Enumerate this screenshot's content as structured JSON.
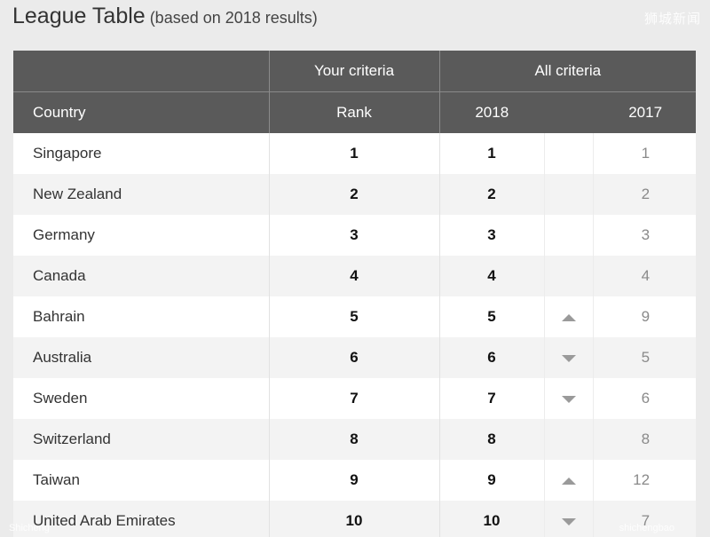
{
  "title": {
    "main": "League Table",
    "sub": " (based on 2018 results)"
  },
  "watermarks": {
    "top_right": "狮城新闻",
    "bottom_left": "Shicheng",
    "bottom_right": "shichengbao"
  },
  "table": {
    "group_headers": {
      "your_criteria": "Your criteria",
      "all_criteria": "All criteria"
    },
    "columns": {
      "country": "Country",
      "rank": "Rank",
      "y2018": "2018",
      "y2017": "2017"
    },
    "rows": [
      {
        "country": "Singapore",
        "rank": "1",
        "y2018": "1",
        "trend": "none",
        "y2017": "1"
      },
      {
        "country": "New Zealand",
        "rank": "2",
        "y2018": "2",
        "trend": "none",
        "y2017": "2"
      },
      {
        "country": "Germany",
        "rank": "3",
        "y2018": "3",
        "trend": "none",
        "y2017": "3"
      },
      {
        "country": "Canada",
        "rank": "4",
        "y2018": "4",
        "trend": "none",
        "y2017": "4"
      },
      {
        "country": "Bahrain",
        "rank": "5",
        "y2018": "5",
        "trend": "up",
        "y2017": "9"
      },
      {
        "country": "Australia",
        "rank": "6",
        "y2018": "6",
        "trend": "down",
        "y2017": "5"
      },
      {
        "country": "Sweden",
        "rank": "7",
        "y2018": "7",
        "trend": "down",
        "y2017": "6"
      },
      {
        "country": "Switzerland",
        "rank": "8",
        "y2018": "8",
        "trend": "none",
        "y2017": "8"
      },
      {
        "country": "Taiwan",
        "rank": "9",
        "y2018": "9",
        "trend": "up",
        "y2017": "12"
      },
      {
        "country": "United Arab Emirates",
        "rank": "10",
        "y2018": "10",
        "trend": "down",
        "y2017": "7"
      }
    ]
  },
  "colors": {
    "header_bg": "#5a5a5a",
    "page_bg": "#ebebeb",
    "row_odd": "#ffffff",
    "row_even": "#f3f3f3",
    "trend_arrow": "#9a9a9a"
  }
}
